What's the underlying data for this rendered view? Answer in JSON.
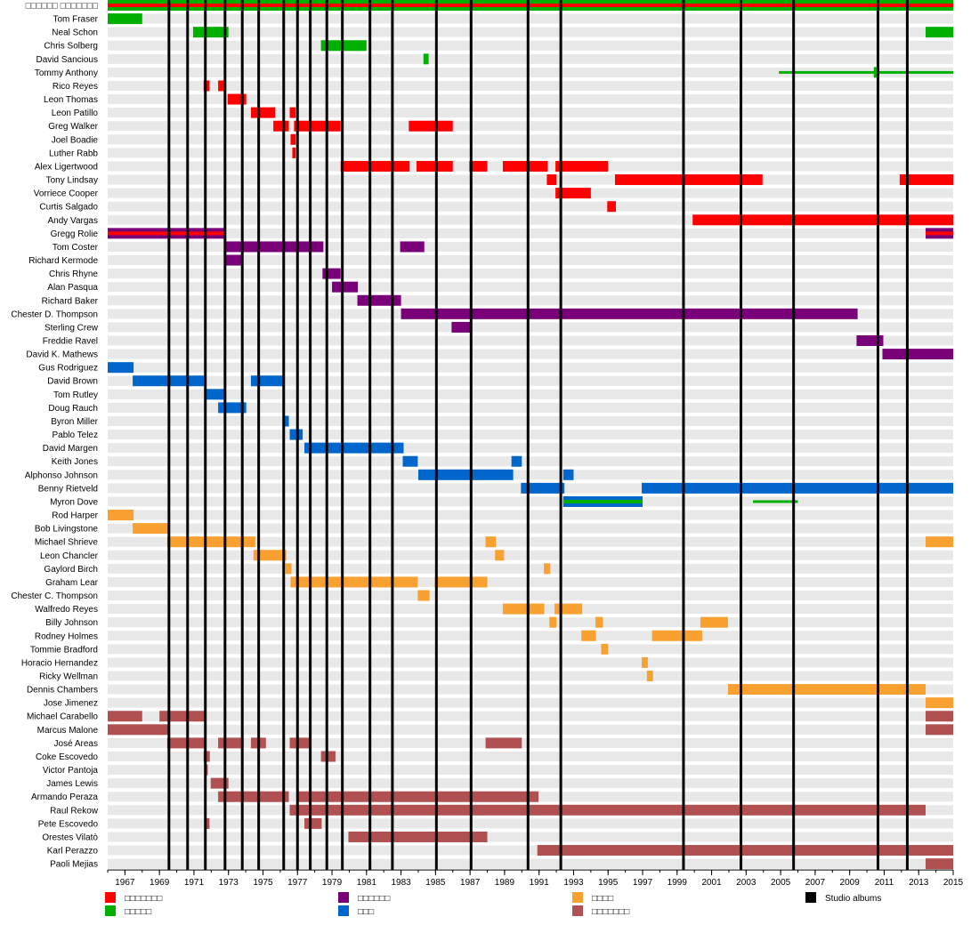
{
  "chart_data": {
    "type": "timeline",
    "xlim": [
      1966,
      2015
    ],
    "x_ticks": [
      1967,
      1969,
      1971,
      1973,
      1975,
      1977,
      1979,
      1981,
      1983,
      1985,
      1987,
      1989,
      1991,
      1993,
      1995,
      1997,
      1999,
      2001,
      2003,
      2005,
      2007,
      2009,
      2011,
      2013,
      2015
    ],
    "roles": {
      "vocals": {
        "label": "□□□□□□□",
        "color": "#ff0000"
      },
      "guitar": {
        "label": "□□□□□",
        "color": "#00b000"
      },
      "keyboards": {
        "label": "□□□□□□",
        "color": "#7a007a"
      },
      "bass": {
        "label": "□□□",
        "color": "#0066cc"
      },
      "drums": {
        "label": "□□□□",
        "color": "#f8a030"
      },
      "percussion": {
        "label": "□□□□□□□",
        "color": "#b05050"
      }
    },
    "legend_order": [
      "vocals",
      "guitar",
      "keyboards",
      "bass",
      "drums",
      "percussion"
    ],
    "albums_label": "Studio albums",
    "album_years": [
      1969.55,
      1970.63,
      1971.66,
      1972.8,
      1973.8,
      1974.75,
      1976.2,
      1977.0,
      1977.74,
      1978.7,
      1979.6,
      1981.2,
      1982.5,
      1985.05,
      1987.06,
      1990.36,
      1992.26,
      1999.37,
      2002.7,
      2005.75,
      2010.64,
      2012.34
    ],
    "members": [
      {
        "name": "□□□□□□ □□□□□□□",
        "bars": [
          [
            1966,
            2015,
            "guitar",
            "vocals"
          ]
        ]
      },
      {
        "name": "Tom Fraser",
        "bars": [
          [
            1966,
            1968,
            "guitar"
          ]
        ]
      },
      {
        "name": "Neal Schon",
        "bars": [
          [
            1970.95,
            1973,
            "guitar"
          ],
          [
            2013.4,
            2015,
            "guitar"
          ]
        ]
      },
      {
        "name": "Chris Solberg",
        "bars": [
          [
            1978.36,
            1981,
            "guitar"
          ]
        ]
      },
      {
        "name": "David Sancious",
        "bars": [
          [
            1984.3,
            1984.6,
            "guitar"
          ]
        ]
      },
      {
        "name": "Tommy Anthony",
        "bars": [
          [
            2004.9,
            2015,
            "guitar",
            "thin"
          ],
          [
            2010.4,
            2010.7,
            "guitar"
          ]
        ]
      },
      {
        "name": "Rico Reyes",
        "bars": [
          [
            1971.56,
            1971.9,
            "vocals"
          ],
          [
            1972.4,
            1972.75,
            "vocals"
          ]
        ]
      },
      {
        "name": "Leon Thomas",
        "bars": [
          [
            1972.95,
            1974.03,
            "vocals"
          ]
        ]
      },
      {
        "name": "Leon Patillo",
        "bars": [
          [
            1974.3,
            1975.7,
            "vocals"
          ],
          [
            1976.55,
            1976.9,
            "vocals"
          ]
        ]
      },
      {
        "name": "Greg Walker",
        "bars": [
          [
            1975.6,
            1976.5,
            "vocals"
          ],
          [
            1976.8,
            1979.5,
            "vocals"
          ],
          [
            1983.45,
            1986,
            "vocals"
          ]
        ]
      },
      {
        "name": "Joel Boadie",
        "bars": [
          [
            1976.6,
            1976.9,
            "vocals"
          ]
        ]
      },
      {
        "name": "Luther Rabb",
        "bars": [
          [
            1976.7,
            1976.9,
            "vocals"
          ]
        ]
      },
      {
        "name": "Alex Ligertwood",
        "bars": [
          [
            1979.5,
            1983.5,
            "vocals"
          ],
          [
            1983.9,
            1986,
            "vocals"
          ],
          [
            1986.96,
            1988,
            "vocals"
          ],
          [
            1988.9,
            1991.5,
            "vocals"
          ],
          [
            1991.95,
            1995,
            "vocals"
          ]
        ]
      },
      {
        "name": "Tony Lindsay",
        "bars": [
          [
            1991.45,
            1992,
            "vocals"
          ],
          [
            1995.4,
            2003.95,
            "vocals"
          ],
          [
            2011.9,
            2015,
            "vocals"
          ]
        ]
      },
      {
        "name": "Vorriece Cooper",
        "bars": [
          [
            1991.95,
            1994,
            "vocals"
          ]
        ]
      },
      {
        "name": "Curtis Salgado",
        "bars": [
          [
            1994.95,
            1995.45,
            "vocals"
          ]
        ]
      },
      {
        "name": "Andy Vargas",
        "bars": [
          [
            1999.9,
            2015,
            "vocals"
          ]
        ]
      },
      {
        "name": "Gregg Rolie",
        "bars": [
          [
            1966,
            1972.85,
            "keyboards",
            "vocals"
          ],
          [
            2013.4,
            2015,
            "keyboards",
            "vocals"
          ]
        ]
      },
      {
        "name": "Tom Coster",
        "bars": [
          [
            1972.75,
            1978.5,
            "keyboards"
          ],
          [
            1982.95,
            1984.35,
            "keyboards"
          ]
        ]
      },
      {
        "name": "Richard Kermode",
        "bars": [
          [
            1972.8,
            1973.83,
            "keyboards"
          ]
        ]
      },
      {
        "name": "Chris Rhyne",
        "bars": [
          [
            1978.45,
            1979.5,
            "keyboards"
          ]
        ]
      },
      {
        "name": "Alan Pasqua",
        "bars": [
          [
            1979,
            1980.5,
            "keyboards"
          ]
        ]
      },
      {
        "name": "Richard Baker",
        "bars": [
          [
            1980.47,
            1983,
            "keyboards"
          ]
        ]
      },
      {
        "name": "Chester D. Thompson",
        "bars": [
          [
            1983,
            2009.46,
            "keyboards"
          ]
        ]
      },
      {
        "name": "Sterling Crew",
        "bars": [
          [
            1985.93,
            1987.06,
            "keyboards"
          ]
        ]
      },
      {
        "name": "Freddie Ravel",
        "bars": [
          [
            2009.4,
            2010.95,
            "keyboards"
          ]
        ]
      },
      {
        "name": "David K. Mathews",
        "bars": [
          [
            2010.9,
            2015,
            "keyboards"
          ]
        ]
      },
      {
        "name": "Gus Rodriguez",
        "bars": [
          [
            1966,
            1967.5,
            "bass"
          ]
        ]
      },
      {
        "name": "David Brown",
        "bars": [
          [
            1967.45,
            1971.66,
            "bass"
          ],
          [
            1974.3,
            1976.25,
            "bass"
          ]
        ]
      },
      {
        "name": "Tom Rutley",
        "bars": [
          [
            1971.6,
            1972.75,
            "bass"
          ]
        ]
      },
      {
        "name": "Doug Rauch",
        "bars": [
          [
            1972.4,
            1974.03,
            "bass"
          ]
        ]
      },
      {
        "name": "Byron Miller",
        "bars": [
          [
            1976.2,
            1976.5,
            "bass"
          ]
        ]
      },
      {
        "name": "Pablo Telez",
        "bars": [
          [
            1976.55,
            1977.3,
            "bass"
          ]
        ]
      },
      {
        "name": "David Margen",
        "bars": [
          [
            1977.4,
            1983.15,
            "bass"
          ]
        ]
      },
      {
        "name": "Keith Jones",
        "bars": [
          [
            1983.1,
            1983.97,
            "bass"
          ],
          [
            1989.4,
            1990,
            "bass"
          ]
        ]
      },
      {
        "name": "Alphonso Johnson",
        "bars": [
          [
            1984,
            1989.5,
            "bass"
          ],
          [
            1992.4,
            1993,
            "bass"
          ]
        ]
      },
      {
        "name": "Benny Rietveld",
        "bars": [
          [
            1989.95,
            1992.47,
            "bass"
          ],
          [
            1996.95,
            2015,
            "bass"
          ]
        ]
      },
      {
        "name": "Myron Dove",
        "bars": [
          [
            1992.4,
            1997,
            "bass",
            "guitar"
          ],
          [
            2003.4,
            2006,
            "guitar",
            "thin"
          ]
        ]
      },
      {
        "name": "Rod Harper",
        "bars": [
          [
            1966,
            1967.5,
            "drums"
          ]
        ]
      },
      {
        "name": "Bob Livingstone",
        "bars": [
          [
            1967.45,
            1969.5,
            "drums"
          ]
        ]
      },
      {
        "name": "Michael Shrieve",
        "bars": [
          [
            1969.45,
            1974.55,
            "drums"
          ],
          [
            1987.9,
            1988.5,
            "drums"
          ],
          [
            2013.4,
            2015,
            "drums"
          ]
        ]
      },
      {
        "name": "Leon Chancler",
        "bars": [
          [
            1974.45,
            1976.35,
            "drums"
          ],
          [
            1988.45,
            1988.97,
            "drums"
          ]
        ]
      },
      {
        "name": "Gaylord Birch",
        "bars": [
          [
            1976.3,
            1976.65,
            "drums"
          ],
          [
            1991.28,
            1991.65,
            "drums"
          ]
        ]
      },
      {
        "name": "Graham Lear",
        "bars": [
          [
            1976.6,
            1983.97,
            "drums"
          ],
          [
            1984.95,
            1988,
            "drums"
          ]
        ]
      },
      {
        "name": "Chester C. Thompson",
        "bars": [
          [
            1983.97,
            1984.65,
            "drums"
          ]
        ]
      },
      {
        "name": "Walfredo Reyes",
        "bars": [
          [
            1988.9,
            1991.3,
            "drums"
          ],
          [
            1991.9,
            1993.5,
            "drums"
          ]
        ]
      },
      {
        "name": "Billy Johnson",
        "bars": [
          [
            1991.6,
            1992,
            "drums"
          ],
          [
            1994.27,
            1994.7,
            "drums"
          ],
          [
            2000.35,
            2001.95,
            "drums"
          ]
        ]
      },
      {
        "name": "Rodney Holmes",
        "bars": [
          [
            1993.45,
            1994.3,
            "drums"
          ],
          [
            1997.55,
            2000.45,
            "drums"
          ]
        ]
      },
      {
        "name": "Tommie Bradford",
        "bars": [
          [
            1994.6,
            1995,
            "drums"
          ]
        ]
      },
      {
        "name": "Horacio Hernandez",
        "bars": [
          [
            1996.95,
            1997.3,
            "drums"
          ]
        ]
      },
      {
        "name": "Ricky Wellman",
        "bars": [
          [
            1997.25,
            1997.6,
            "drums"
          ]
        ]
      },
      {
        "name": "Dennis Chambers",
        "bars": [
          [
            2001.95,
            2013.4,
            "drums"
          ]
        ]
      },
      {
        "name": "Jose Jimenez",
        "bars": [
          [
            2013.4,
            2015,
            "drums"
          ]
        ]
      },
      {
        "name": "Michael Carabello",
        "bars": [
          [
            1966,
            1968,
            "percussion"
          ],
          [
            1969,
            1971.66,
            "percussion"
          ],
          [
            2013.4,
            2015,
            "percussion"
          ]
        ]
      },
      {
        "name": "Marcus Malone",
        "bars": [
          [
            1966,
            1969.5,
            "percussion"
          ],
          [
            2013.4,
            2015,
            "percussion"
          ]
        ]
      },
      {
        "name": "José Areas",
        "bars": [
          [
            1969.45,
            1971.7,
            "percussion"
          ],
          [
            1972.4,
            1973.88,
            "percussion"
          ],
          [
            1974.3,
            1975.17,
            "percussion"
          ],
          [
            1976.55,
            1977.74,
            "percussion"
          ],
          [
            1987.9,
            1990,
            "percussion"
          ]
        ]
      },
      {
        "name": "Coke Escovedo",
        "bars": [
          [
            1971.56,
            1971.92,
            "percussion"
          ],
          [
            1978.36,
            1979.2,
            "percussion"
          ]
        ]
      },
      {
        "name": "Victor Pantoja",
        "bars": [
          [
            1971.6,
            1971.8,
            "percussion"
          ]
        ]
      },
      {
        "name": "James Lewis",
        "bars": [
          [
            1971.97,
            1973,
            "percussion"
          ]
        ]
      },
      {
        "name": "Armando Peraza",
        "bars": [
          [
            1972.4,
            1976.5,
            "percussion"
          ],
          [
            1976.97,
            1990.97,
            "percussion"
          ]
        ]
      },
      {
        "name": "Raul Rekow",
        "bars": [
          [
            1976.55,
            2013.4,
            "percussion"
          ]
        ]
      },
      {
        "name": "Pete Escovedo",
        "bars": [
          [
            1971.66,
            1971.9,
            "percussion"
          ],
          [
            1977.4,
            1978.4,
            "percussion"
          ]
        ]
      },
      {
        "name": "Orestes Vilatò",
        "bars": [
          [
            1979.95,
            1988,
            "percussion"
          ]
        ]
      },
      {
        "name": "Karl Perazzo",
        "bars": [
          [
            1990.9,
            2015,
            "percussion"
          ]
        ]
      },
      {
        "name": "Paoli Mejias",
        "bars": [
          [
            2013.4,
            2015,
            "percussion"
          ]
        ]
      }
    ]
  }
}
